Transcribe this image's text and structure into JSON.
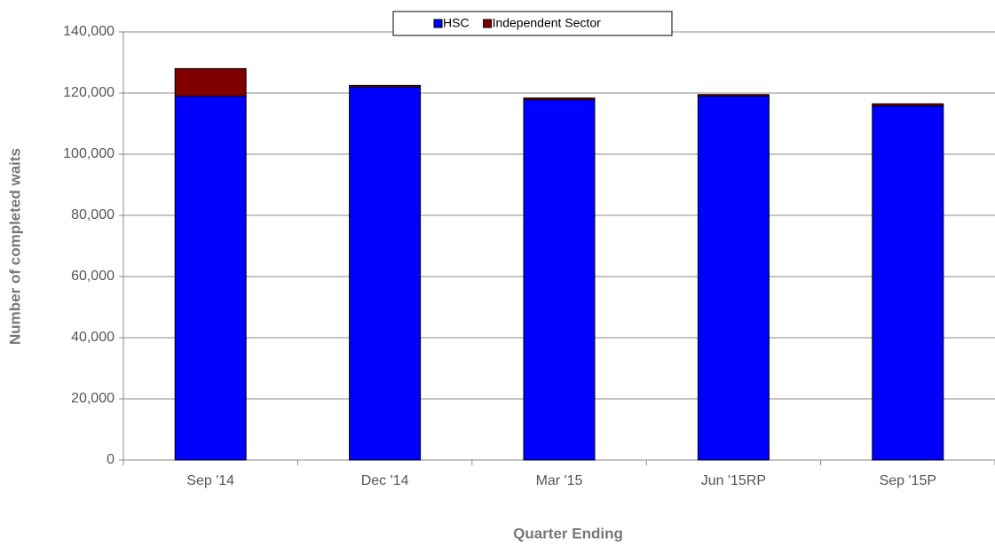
{
  "chart_data": {
    "type": "stacked_bar",
    "categories": [
      "Sep '14",
      "Dec '14",
      "Mar '15",
      "Jun '15RP",
      "Sep '15P"
    ],
    "series": [
      {
        "name": "HSC",
        "color": "#0000ff",
        "values": [
          119000,
          122000,
          117800,
          119000,
          115800
        ]
      },
      {
        "name": "Independent Sector",
        "color": "#800000",
        "values": [
          9000,
          500,
          600,
          500,
          700
        ]
      }
    ],
    "ylim": [
      0,
      140000
    ],
    "yticks": [
      0,
      {
        "value": 20000,
        "label": "20,000"
      },
      {
        "value": 40000,
        "label": "40,000"
      },
      {
        "value": 60000,
        "label": "60,000"
      },
      {
        "value": 80000,
        "label": "80,000"
      },
      {
        "value": 100000,
        "label": "100,000"
      },
      {
        "value": 120000,
        "label": "120,000"
      },
      {
        "value": 140000,
        "label": "140,000"
      }
    ],
    "y_label": "Number of completed waits",
    "x_label": "Quarter Ending",
    "grid": true,
    "legend": "top"
  }
}
